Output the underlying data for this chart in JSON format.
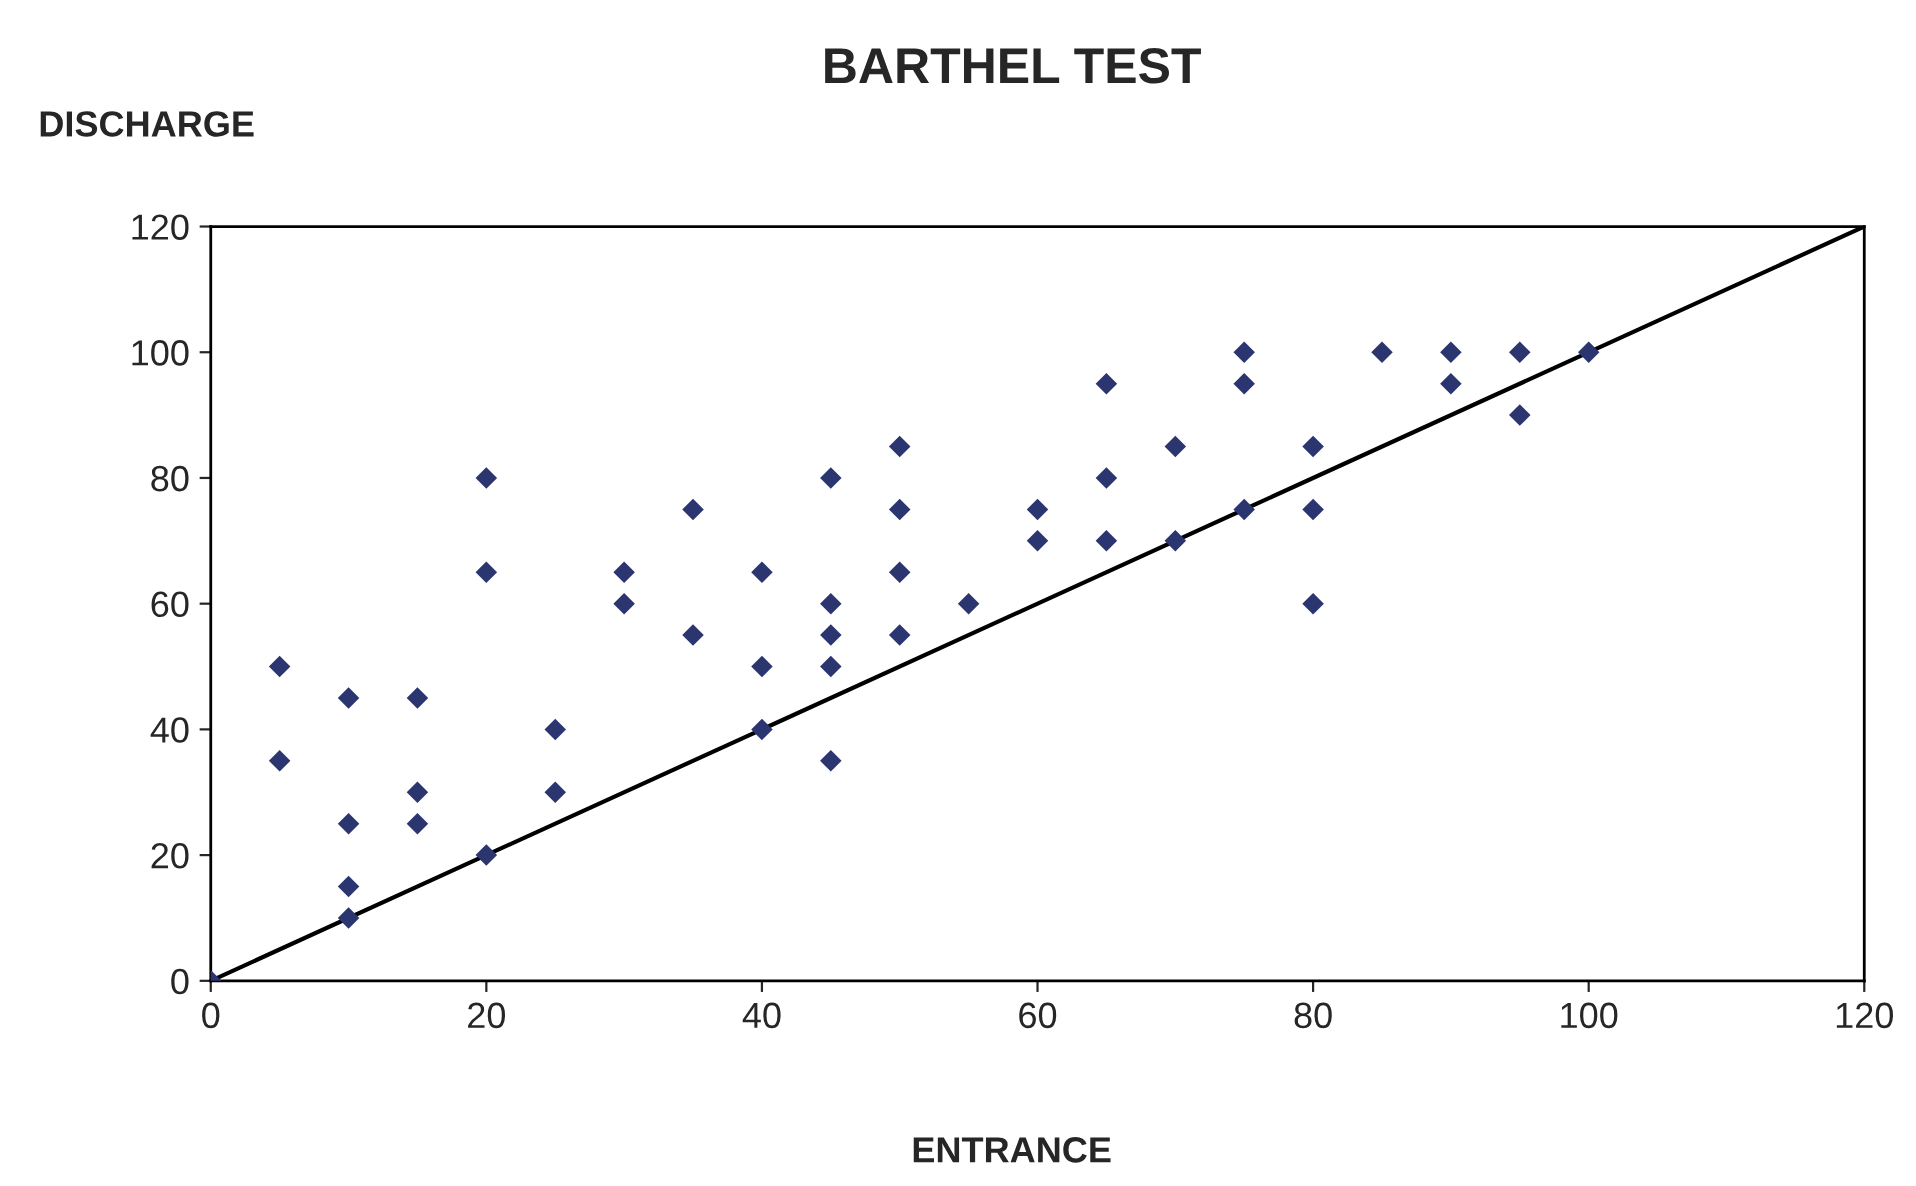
{
  "chart_data": {
    "type": "scatter",
    "title": "BARTHEL TEST",
    "xlabel": "ENTRANCE",
    "ylabel": "DISCHARGE",
    "xlim": [
      0,
      120
    ],
    "ylim": [
      0,
      120
    ],
    "xticks": [
      0,
      20,
      40,
      60,
      80,
      100,
      120
    ],
    "yticks": [
      0,
      20,
      40,
      60,
      80,
      100,
      120
    ],
    "grid": false,
    "legend": false,
    "series": [
      {
        "type": "scatter",
        "marker": "diamond",
        "color": "#2b3670",
        "x": [
          0,
          5,
          5,
          10,
          10,
          10,
          10,
          15,
          15,
          15,
          20,
          20,
          20,
          25,
          25,
          30,
          30,
          35,
          35,
          40,
          40,
          40,
          45,
          45,
          45,
          45,
          45,
          50,
          50,
          50,
          50,
          55,
          60,
          60,
          65,
          65,
          65,
          70,
          70,
          75,
          75,
          75,
          80,
          80,
          80,
          85,
          90,
          90,
          95,
          95,
          100
        ],
        "values": [
          0,
          50,
          35,
          45,
          25,
          15,
          10,
          45,
          30,
          25,
          80,
          65,
          20,
          40,
          30,
          65,
          60,
          75,
          55,
          65,
          50,
          40,
          80,
          60,
          55,
          50,
          35,
          85,
          75,
          65,
          55,
          60,
          75,
          70,
          95,
          80,
          70,
          85,
          70,
          100,
          95,
          75,
          85,
          75,
          60,
          100,
          100,
          95,
          100,
          90,
          100
        ]
      },
      {
        "type": "line",
        "marker": "none",
        "line_style": "solid",
        "color": "#000000",
        "x": [
          0,
          120
        ],
        "values": [
          0,
          120
        ]
      }
    ]
  }
}
